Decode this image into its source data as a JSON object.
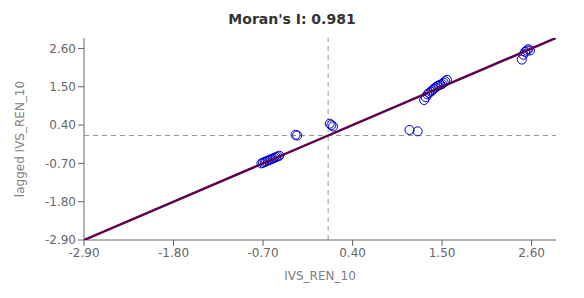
{
  "chart_data": {
    "type": "scatter",
    "title": "Moran's I: 0.981",
    "xlabel": "IVS_REN_10",
    "ylabel": "lagged IVS_REN_10",
    "xlim": [
      -2.9,
      2.9
    ],
    "ylim": [
      -2.9,
      2.9
    ],
    "xticks": [
      {
        "value": -2.9,
        "label": "-2.90"
      },
      {
        "value": -1.8,
        "label": "-1.80"
      },
      {
        "value": -0.7,
        "label": "-0.70"
      },
      {
        "value": 0.4,
        "label": "0.40"
      },
      {
        "value": 1.5,
        "label": "1.50"
      },
      {
        "value": 2.6,
        "label": "2.60"
      }
    ],
    "yticks": [
      {
        "value": -2.9,
        "label": "-2.90"
      },
      {
        "value": -1.8,
        "label": "-1.80"
      },
      {
        "value": -0.7,
        "label": "-0.70"
      },
      {
        "value": 0.4,
        "label": "0.40"
      },
      {
        "value": 1.5,
        "label": "1.50"
      },
      {
        "value": 2.6,
        "label": "2.60"
      }
    ],
    "grid": false,
    "series": [
      {
        "type": "scatter",
        "color": "#0000CC",
        "marker": "circle",
        "x": [
          -0.72,
          -0.7,
          -0.68,
          -0.66,
          -0.64,
          -0.62,
          -0.6,
          -0.58,
          -0.56,
          -0.54,
          -0.52,
          -0.5,
          -0.3,
          -0.28,
          0.12,
          0.14,
          0.16,
          1.1,
          1.2,
          1.28,
          1.3,
          1.32,
          1.34,
          1.36,
          1.38,
          1.4,
          1.42,
          1.44,
          1.46,
          1.48,
          1.5,
          1.52,
          1.54,
          1.56,
          2.48,
          2.5,
          2.52,
          2.54,
          2.56,
          2.58
        ],
        "values": [
          -0.7,
          -0.68,
          -0.66,
          -0.64,
          -0.62,
          -0.6,
          -0.58,
          -0.56,
          -0.54,
          -0.52,
          -0.5,
          -0.48,
          0.12,
          0.1,
          0.44,
          0.4,
          0.36,
          0.26,
          0.22,
          1.12,
          1.2,
          1.28,
          1.32,
          1.36,
          1.4,
          1.44,
          1.48,
          1.52,
          1.54,
          1.56,
          1.58,
          1.62,
          1.66,
          1.7,
          2.28,
          2.42,
          2.5,
          2.54,
          2.58,
          2.54
        ]
      },
      {
        "type": "line",
        "color": "#5C0050",
        "line_style": "solid",
        "x": [
          -2.9,
          2.9
        ],
        "values": [
          -2.9,
          2.9
        ]
      }
    ],
    "reference_lines": [
      {
        "axis": "y",
        "value": 0.1,
        "color": "#999999",
        "line_style": "dashed"
      },
      {
        "axis": "x",
        "value": 0.1,
        "color": "#999999",
        "line_style": "dashed"
      }
    ]
  }
}
